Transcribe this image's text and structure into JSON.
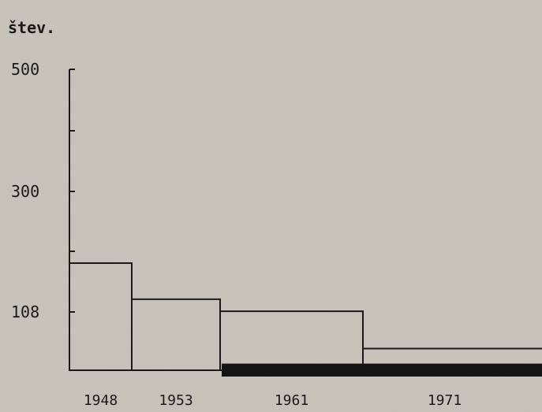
{
  "chart_data": {
    "type": "bar",
    "ylabel": "štev.",
    "y_ticks": [
      "500",
      "300",
      "108"
    ],
    "ylim": [
      0,
      500
    ],
    "categories": [
      "1948",
      "1953",
      "1961",
      "1971"
    ],
    "series": [
      {
        "values": [
          178,
          118,
          98,
          36
        ]
      },
      {
        "values": [
          0,
          0,
          11,
          11
        ]
      }
    ],
    "grid": false,
    "legend": "none"
  }
}
